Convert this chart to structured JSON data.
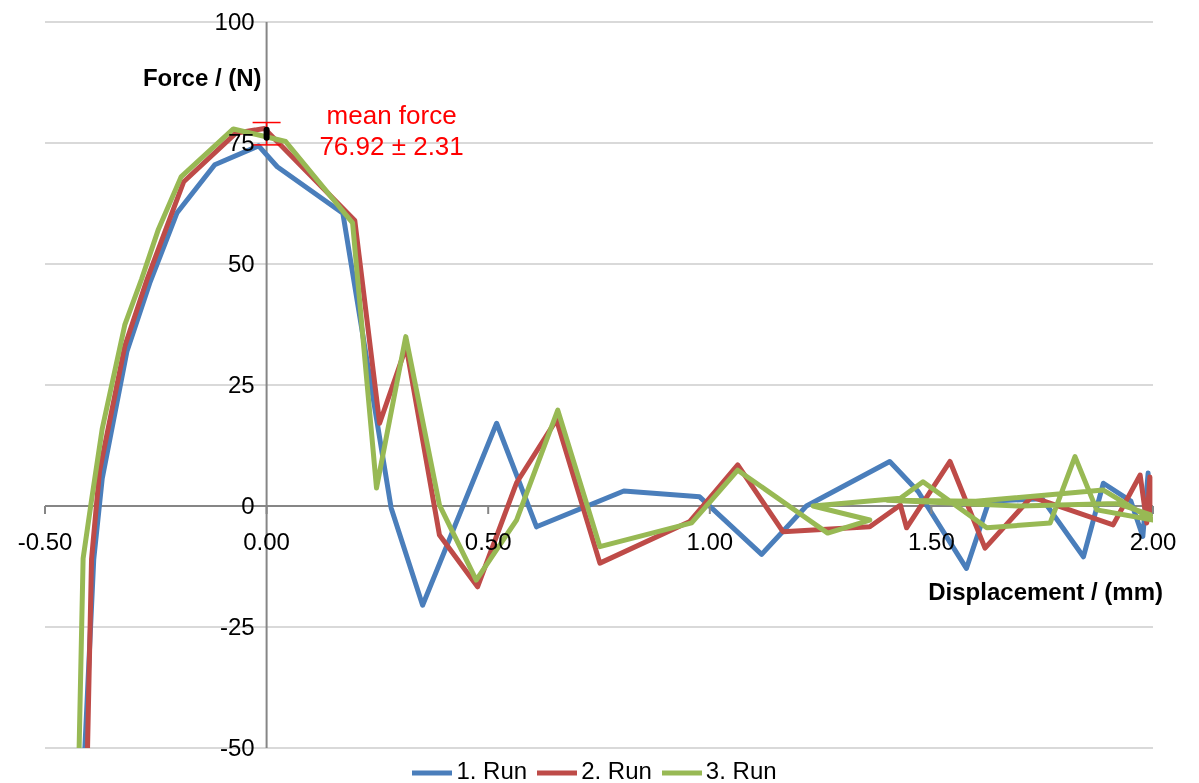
{
  "chart_data": {
    "type": "line",
    "xlabel": "Displacement / (mm)",
    "ylabel": "Force / (N)",
    "xlim": [
      -0.5,
      2
    ],
    "xticks": [
      {
        "value": -0.5,
        "label": "-0.50"
      },
      {
        "value": 0,
        "label": "0.00"
      },
      {
        "value": 0.5,
        "label": "0.50"
      },
      {
        "value": 1,
        "label": "1.00"
      },
      {
        "value": 1.5,
        "label": "1.50"
      },
      {
        "value": 2,
        "label": "2.00"
      }
    ],
    "ylim": [
      -50,
      100
    ],
    "yticks": [
      -50,
      -25,
      0,
      25,
      50,
      75,
      100
    ],
    "grid": "y",
    "legend": "bottom",
    "line_style": "solid",
    "annotations": [
      {
        "text": "mean force\n76.92 ± 2.31",
        "x": 0,
        "y": 76.92
      }
    ],
    "series": [
      {
        "name": "1. Run",
        "color": "#4a7ebb",
        "x": [
          -0.41,
          -0.39,
          -0.371,
          -0.315,
          -0.264,
          -0.202,
          -0.117,
          -0.018,
          0.024,
          0.172,
          0.281,
          0.352,
          0.519,
          0.609,
          0.806,
          0.977,
          1.117,
          1.218,
          1.406,
          1.47,
          1.579,
          1.63,
          1.75,
          1.843,
          1.888,
          1.95,
          1.977,
          1.989,
          1.99
        ],
        "values": [
          -50,
          -11,
          5.6,
          32,
          46,
          60.6,
          70.5,
          74.4,
          70.1,
          60.5,
          -0.4,
          -20.5,
          17.1,
          -4.3,
          3.1,
          1.9,
          -10,
          0,
          9.2,
          3,
          -12.9,
          1,
          1.5,
          -10.5,
          4.7,
          1,
          -6.3,
          6.8,
          0
        ]
      },
      {
        "name": "2. Run",
        "color": "#be4b48",
        "x": [
          -0.404,
          -0.395,
          -0.377,
          -0.32,
          -0.269,
          -0.187,
          -0.07,
          -0.005,
          0.199,
          0.255,
          0.315,
          0.39,
          0.476,
          0.564,
          0.654,
          0.752,
          0.955,
          1.063,
          1.165,
          1.361,
          1.43,
          1.444,
          1.542,
          1.621,
          1.726,
          1.91,
          1.971,
          1.986,
          1.993,
          1.993
        ],
        "values": [
          -50,
          -11,
          7.2,
          33,
          47,
          67,
          77,
          78,
          59,
          17.1,
          32.9,
          -6,
          -16.7,
          4.8,
          17.8,
          -11.8,
          -3.2,
          8.5,
          -5.3,
          -4.3,
          0.2,
          -4.5,
          9.2,
          -8.7,
          1.9,
          -3.9,
          6.4,
          -3.5,
          6,
          -3
        ]
      },
      {
        "name": "3. Run",
        "color": "#98b954",
        "x": [
          -0.423,
          -0.414,
          -0.395,
          -0.371,
          -0.32,
          -0.282,
          -0.244,
          -0.193,
          -0.075,
          0.043,
          0.194,
          0.248,
          0.314,
          0.39,
          0.473,
          0.564,
          0.657,
          0.752,
          0.959,
          1.063,
          1.266,
          1.361,
          1.233,
          1.43,
          1.481,
          1.625,
          1.768,
          1.824,
          1.873,
          2,
          1.888,
          1.6,
          1.4,
          1.7,
          1.92,
          2
        ],
        "values": [
          -50,
          -10.8,
          1.2,
          15.9,
          37.4,
          46.9,
          57.2,
          68,
          77.9,
          75.3,
          58.5,
          3.7,
          35,
          0.2,
          -15.3,
          -2.9,
          19.8,
          -8.4,
          -3.5,
          7.4,
          -5.6,
          -2.9,
          0,
          1.6,
          5,
          -4.5,
          -3.5,
          10.2,
          -0.8,
          -2.9,
          3.3,
          1,
          1.2,
          0,
          0.5,
          -2
        ]
      },
      {
        "type": "scatter",
        "color": "#000000",
        "x": [
          0
        ],
        "values": [
          76.92
        ],
        "errors": [
          2.31
        ]
      }
    ]
  }
}
